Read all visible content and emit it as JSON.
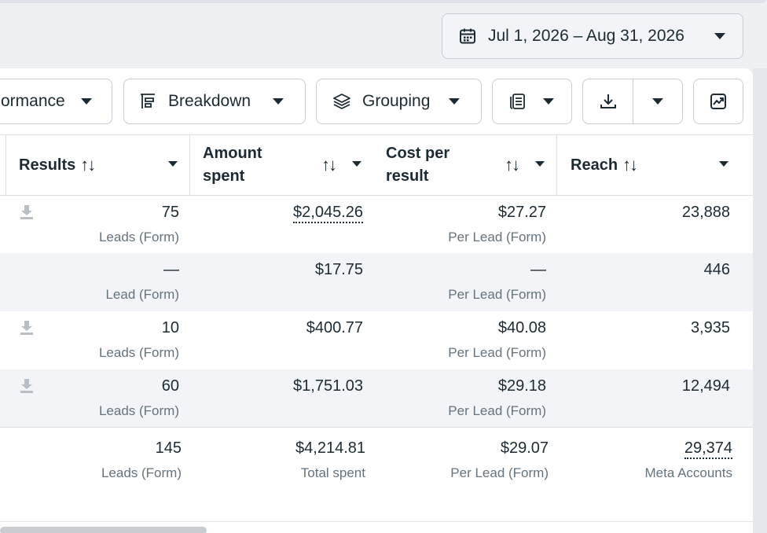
{
  "date_range": {
    "label": "Jul 1, 2026 – Aug 31, 2026"
  },
  "toolbar": {
    "performance_label": "ormance",
    "breakdown_label": "Breakdown",
    "grouping_label": "Grouping"
  },
  "columns": {
    "results": "Results",
    "amount_spent_line1": "Amount",
    "amount_spent_line2": "spent",
    "cost_per_result_line1": "Cost per",
    "cost_per_result_line2": "result",
    "reach": "Reach",
    "sort_symbol": "↑↓"
  },
  "rows": [
    {
      "results": "75",
      "results_sub": "Leads (Form)",
      "amount": "$2,045.26",
      "cpr": "$27.27",
      "cpr_sub": "Per Lead (Form)",
      "reach": "23,888"
    },
    {
      "results": "—",
      "results_sub": "Lead (Form)",
      "amount": "$17.75",
      "cpr": "—",
      "cpr_sub": "Per Lead (Form)",
      "reach": "446"
    },
    {
      "results": "10",
      "results_sub": "Leads (Form)",
      "amount": "$400.77",
      "cpr": "$40.08",
      "cpr_sub": "Per Lead (Form)",
      "reach": "3,935"
    },
    {
      "results": "60",
      "results_sub": "Leads (Form)",
      "amount": "$1,751.03",
      "cpr": "$29.18",
      "cpr_sub": "Per Lead (Form)",
      "reach": "12,494"
    }
  ],
  "totals": {
    "results": "145",
    "results_sub": "Leads (Form)",
    "amount": "$4,214.81",
    "amount_sub": "Total spent",
    "cpr": "$29.07",
    "cpr_sub": "Per Lead (Form)",
    "reach": "29,374",
    "reach_sub": "Meta Accounts"
  },
  "icons": {
    "date": "calendar-icon",
    "breakdown": "breakdown-icon",
    "grouping": "layers-icon",
    "columns": "columns-icon",
    "export": "download-icon",
    "chart": "chart-icon",
    "row_download": "download-icon"
  }
}
